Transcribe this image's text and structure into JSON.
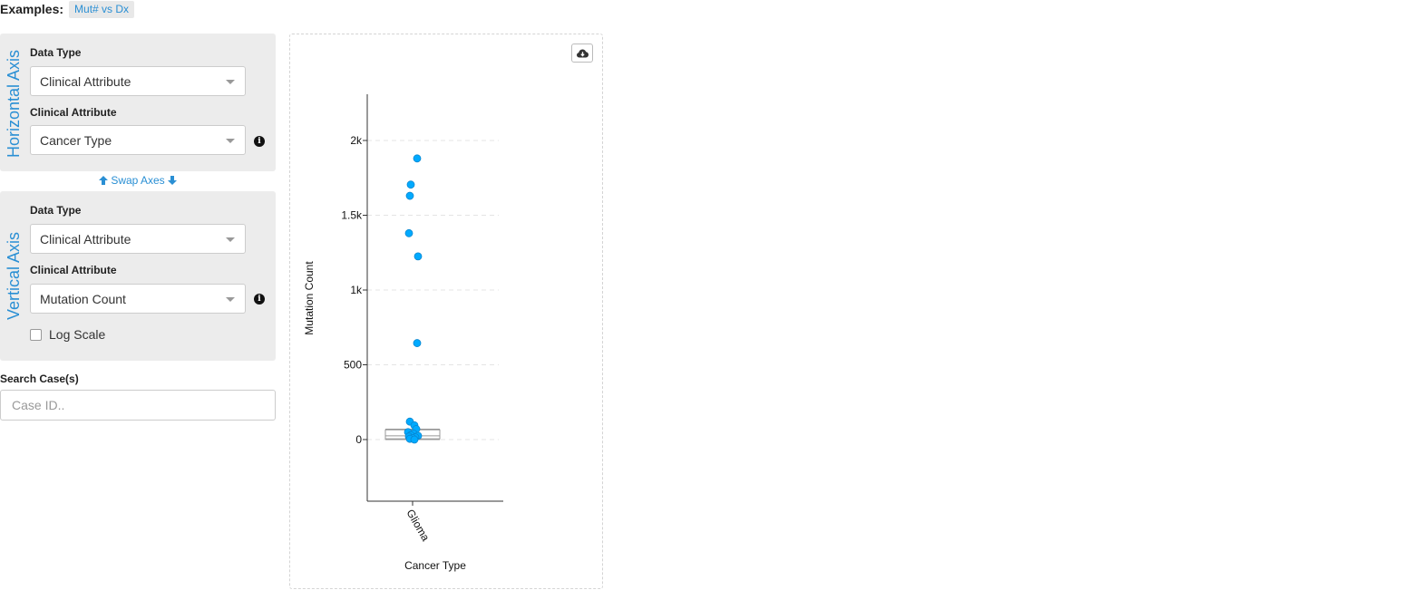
{
  "examples": {
    "label": "Examples:",
    "tags": [
      "Mut# vs Dx"
    ]
  },
  "horizontal_axis": {
    "title": "Horizontal Axis",
    "data_type_label": "Data Type",
    "data_type_value": "Clinical Attribute",
    "attribute_label": "Clinical Attribute",
    "attribute_value": "Cancer Type"
  },
  "swap_axes": {
    "label": "Swap Axes"
  },
  "vertical_axis": {
    "title": "Vertical Axis",
    "data_type_label": "Data Type",
    "data_type_value": "Clinical Attribute",
    "attribute_label": "Clinical Attribute",
    "attribute_value": "Mutation Count",
    "log_scale_label": "Log Scale",
    "log_scale_checked": false
  },
  "search": {
    "label": "Search Case(s)",
    "placeholder": "Case ID.."
  },
  "plot": {
    "download_icon": "cloud-download-icon"
  },
  "chart_data": {
    "type": "scatter",
    "xlabel": "Cancer Type",
    "ylabel": "Mutation Count",
    "categories": [
      "Glioma"
    ],
    "ylim": [
      -400,
      2300
    ],
    "yticks": [
      0,
      500,
      1000,
      1500,
      2000
    ],
    "ytick_labels": [
      "0",
      "500",
      "1k",
      "1.5k",
      "2k"
    ],
    "grid": true,
    "point_color": "#00aaff",
    "points": [
      {
        "category": "Glioma",
        "y": 1880
      },
      {
        "category": "Glioma",
        "y": 1705
      },
      {
        "category": "Glioma",
        "y": 1630
      },
      {
        "category": "Glioma",
        "y": 1380
      },
      {
        "category": "Glioma",
        "y": 1225
      },
      {
        "category": "Glioma",
        "y": 645
      },
      {
        "category": "Glioma",
        "y": 120
      },
      {
        "category": "Glioma",
        "y": 95
      },
      {
        "category": "Glioma",
        "y": 70
      },
      {
        "category": "Glioma",
        "y": 50
      },
      {
        "category": "Glioma",
        "y": 40
      },
      {
        "category": "Glioma",
        "y": 30
      },
      {
        "category": "Glioma",
        "y": 25
      },
      {
        "category": "Glioma",
        "y": 20
      },
      {
        "category": "Glioma",
        "y": 15
      },
      {
        "category": "Glioma",
        "y": 10
      },
      {
        "category": "Glioma",
        "y": 5
      },
      {
        "category": "Glioma",
        "y": 0
      }
    ],
    "boxplot": {
      "q1": 5,
      "median": 25,
      "q3": 65,
      "whisker_low": 0,
      "whisker_high": 70
    }
  }
}
